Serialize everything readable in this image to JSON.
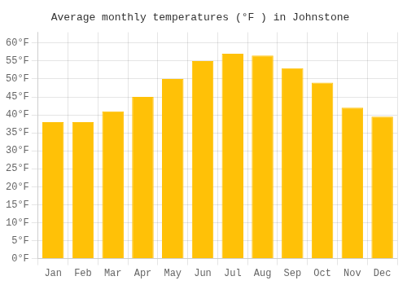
{
  "chart_data": {
    "type": "bar",
    "title": "Average monthly temperatures (°F ) in Johnstone",
    "categories": [
      "Jan",
      "Feb",
      "Mar",
      "Apr",
      "May",
      "Jun",
      "Jul",
      "Aug",
      "Sep",
      "Oct",
      "Nov",
      "Dec"
    ],
    "values": [
      38,
      38,
      41,
      45,
      50,
      55,
      57,
      56.5,
      53,
      49,
      42,
      39.5
    ],
    "color": "#FFC107",
    "ylim": [
      0,
      63
    ],
    "yticks": [
      {
        "value": 0,
        "label": "0°F"
      },
      {
        "value": 5,
        "label": "5°F"
      },
      {
        "value": 10,
        "label": "10°F"
      },
      {
        "value": 15,
        "label": "15°F"
      },
      {
        "value": 20,
        "label": "20°F"
      },
      {
        "value": 25,
        "label": "25°F"
      },
      {
        "value": 30,
        "label": "30°F"
      },
      {
        "value": 35,
        "label": "35°F"
      },
      {
        "value": 40,
        "label": "40°F"
      },
      {
        "value": 45,
        "label": "45°F"
      },
      {
        "value": 50,
        "label": "50°F"
      },
      {
        "value": 55,
        "label": "55°F"
      },
      {
        "value": 60,
        "label": "60°F"
      }
    ],
    "grid": true
  }
}
